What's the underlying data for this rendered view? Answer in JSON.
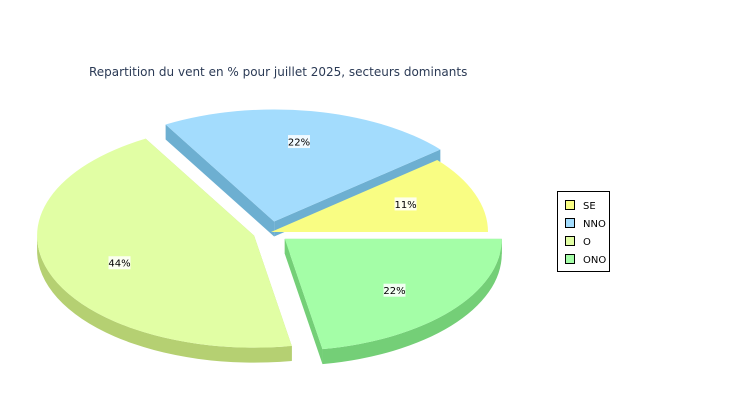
{
  "chart_data": {
    "type": "pie",
    "title": "Repartition du vent en % pour juillet 2025, secteurs dominants",
    "three_d": true,
    "legend_position": "right",
    "slices": [
      {
        "label": "SE",
        "value": 11,
        "value_label": "11%",
        "color": "#f9fd83",
        "side_color": "#d4d84c",
        "exploded": false
      },
      {
        "label": "NNO",
        "value": 22,
        "value_label": "22%",
        "color": "#a3dcfd",
        "side_color": "#6dafd1",
        "exploded": true
      },
      {
        "label": "O",
        "value": 44,
        "value_label": "44%",
        "color": "#e1fea4",
        "side_color": "#b5d072",
        "exploded": true
      },
      {
        "label": "ONO",
        "value": 22,
        "value_label": "22%",
        "color": "#a4fea7",
        "side_color": "#74cf77",
        "exploded": true
      }
    ]
  }
}
